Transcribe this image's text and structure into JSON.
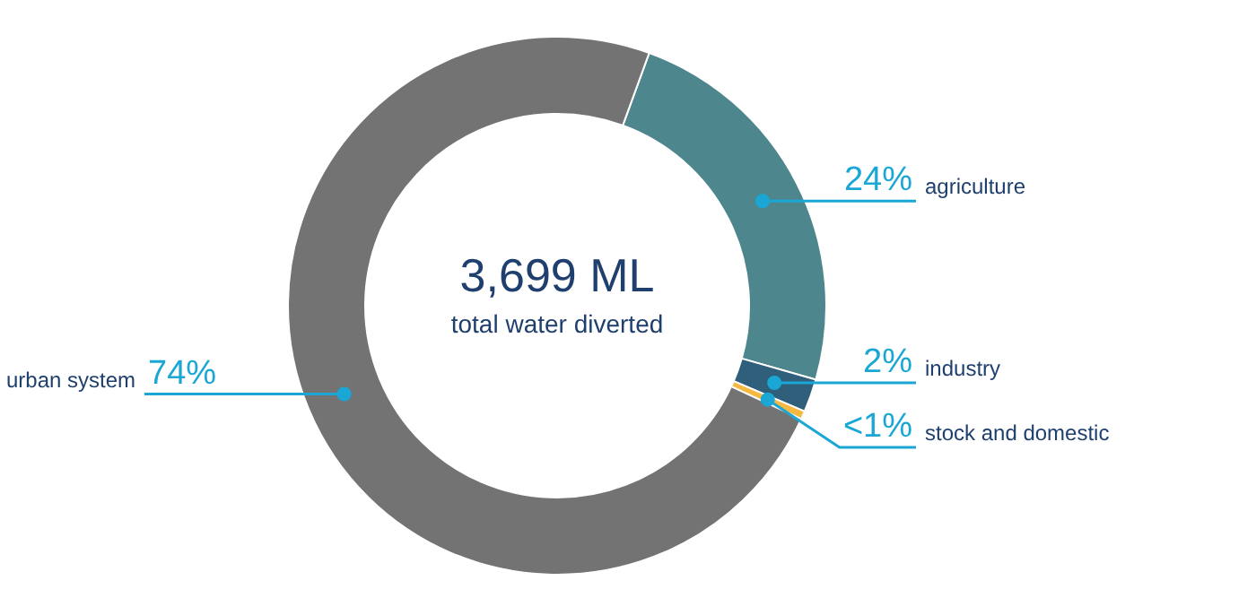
{
  "chart_data": {
    "type": "donut",
    "title": "3,699 ML",
    "subtitle": "total water diverted",
    "categories": [
      "agriculture",
      "industry",
      "stock and domestic",
      "urban system"
    ],
    "values": [
      24,
      2,
      0.5,
      74
    ],
    "value_labels": [
      "24%",
      "2%",
      "<1%",
      "74%"
    ],
    "colors": [
      "#4e868e",
      "#2f5f7a",
      "#f5b841",
      "#737373"
    ]
  }
}
